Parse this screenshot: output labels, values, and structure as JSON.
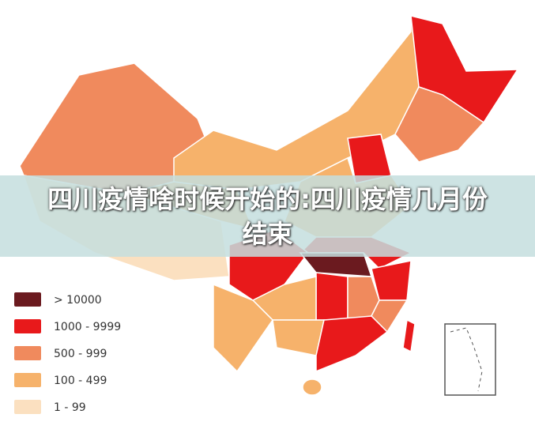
{
  "title": "四川疫情啥时候开始的:四川疫情几月份结束",
  "legend": [
    {
      "label": "> 10000",
      "color": "#6b1a1f"
    },
    {
      "label": "1000 - 9999",
      "color": "#e8191b"
    },
    {
      "label": "500 - 999",
      "color": "#f08a5d"
    },
    {
      "label": "100 - 499",
      "color": "#f6b26b"
    },
    {
      "label": "1 - 99",
      "color": "#fbe0c0"
    }
  ]
}
